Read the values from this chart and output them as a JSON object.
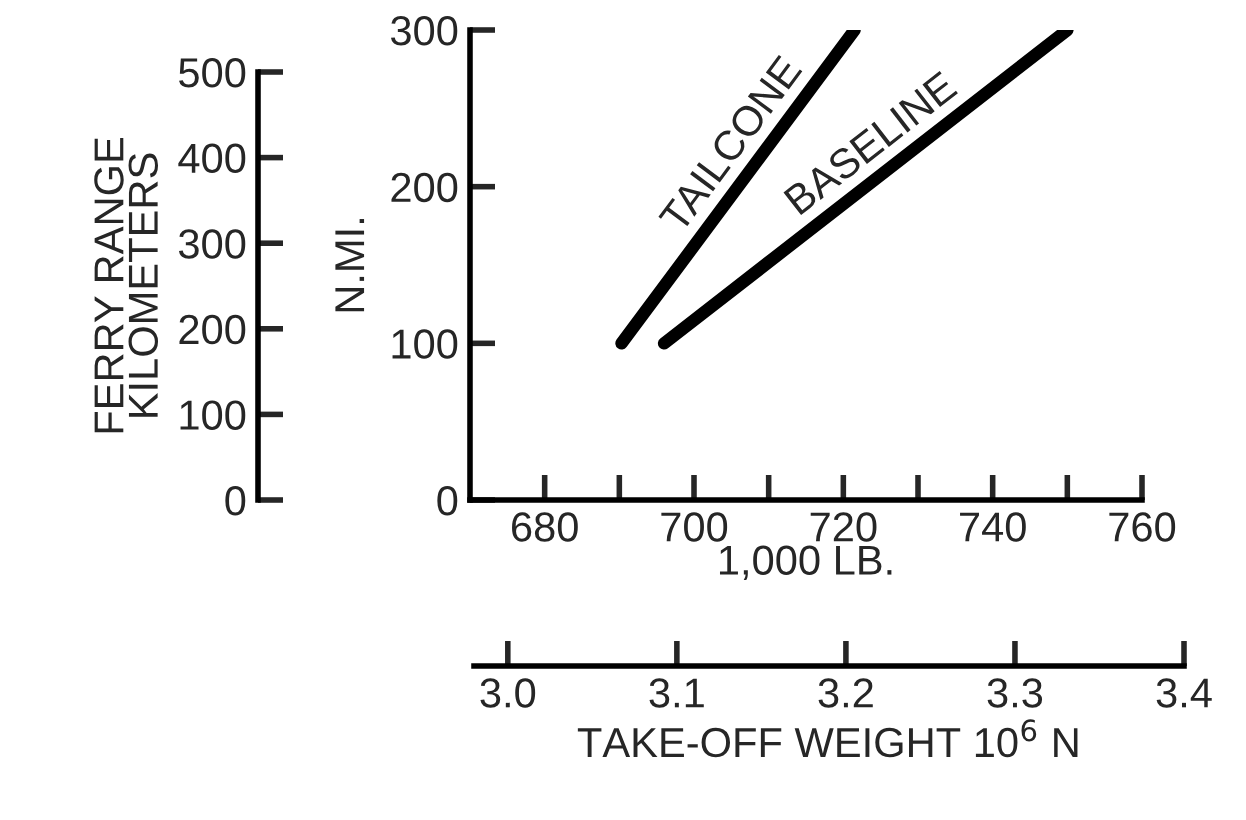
{
  "chart_data": {
    "type": "line",
    "xlabel": "1,000 LB.",
    "ylabel": "N.MI.",
    "y2label": "FERRY RANGE\nKILOMETERS",
    "x2label": "TAKE-OFF WEIGHT 10$^{6}$ N",
    "series": [
      {
        "color": "#000000",
        "x": [
          690.3,
          721.5
        ],
        "values": [
          100,
          300
        ]
      },
      {
        "color": "#000000",
        "x": [
          696,
          750
        ],
        "values": [
          100,
          300
        ]
      }
    ],
    "annotations": [
      "TAILCONE",
      "BASELINE"
    ],
    "xlim": [
      670,
      760
    ],
    "ylim": [
      0,
      300
    ],
    "xticks": [
      680,
      {
        "value": 690,
        "label": null
      },
      700,
      {
        "value": 710,
        "label": null
      },
      720,
      {
        "value": 730,
        "label": null
      },
      740,
      {
        "value": 750,
        "label": null
      },
      760
    ],
    "yticks": [
      0,
      100,
      200,
      300
    ],
    "y2lim": [
      0,
      500
    ],
    "y2ticks": [
      0,
      100,
      200,
      300,
      400,
      500
    ],
    "x2lim": [
      2.98,
      3.4
    ],
    "x2ticks": [
      {
        "value": 3.0,
        "label": "3.0"
      },
      {
        "value": 3.1,
        "label": "3.1"
      },
      {
        "value": 3.2,
        "label": "3.2"
      },
      {
        "value": 3.3,
        "label": "3.3"
      },
      {
        "value": 3.4,
        "label": "3.4"
      }
    ],
    "grid": false,
    "legend": false,
    "marker": "none",
    "line_style": "solid"
  }
}
